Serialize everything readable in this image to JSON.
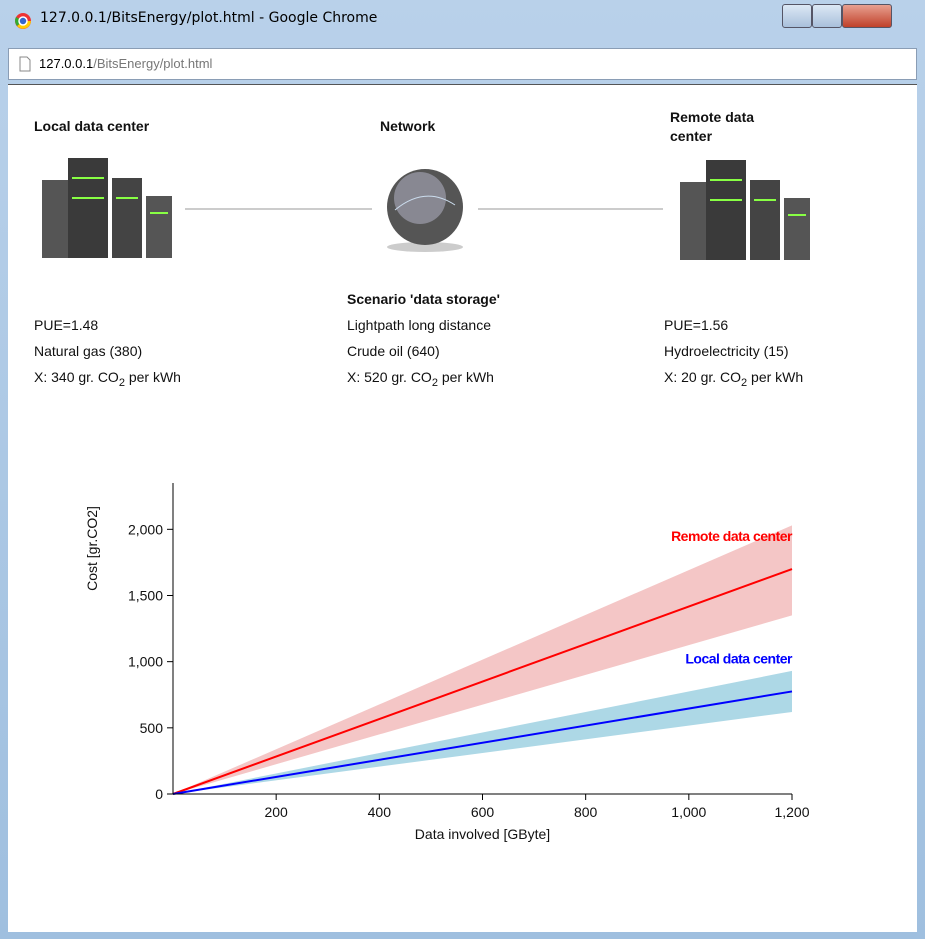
{
  "window": {
    "title": "127.0.0.1/BitsEnergy/plot.html - Google Chrome",
    "address_host": "127.0.0.1",
    "address_path": "/BitsEnergy/plot.html"
  },
  "nodes": [
    {
      "label": "Local data center",
      "lines": [
        "PUE=1.48",
        "Natural gas (380)"
      ],
      "emission": {
        "prefix": "X: 340 gr. CO",
        "sub": "2",
        "suffix": " per kWh"
      }
    },
    {
      "label": "Network",
      "scenario": "Scenario 'data storage'",
      "lines": [
        "Lightpath long distance",
        "Crude oil (640)"
      ],
      "emission": {
        "prefix": "X: 520 gr. CO",
        "sub": "2",
        "suffix": " per kWh"
      }
    },
    {
      "label": "Remote data center",
      "lines": [
        "PUE=1.56",
        "Hydroelectricity (15)"
      ],
      "emission": {
        "prefix": "X: 20 gr. CO",
        "sub": "2",
        "suffix": " per kWh"
      }
    }
  ],
  "chart_data": {
    "type": "line",
    "x_label": "Data involved [GByte]",
    "y_label": "Cost [gr.CO2]",
    "x": [
      0,
      1200
    ],
    "series": [
      {
        "name": "Remote data center",
        "color": "#ff0000",
        "band_color": "#f4c6c6",
        "values": [
          0,
          1700
        ],
        "lower": [
          0,
          1350
        ],
        "upper": [
          0,
          2030
        ]
      },
      {
        "name": "Local data center",
        "color": "#0000ff",
        "band_color": "#add8e6",
        "values": [
          0,
          775
        ],
        "lower": [
          0,
          620
        ],
        "upper": [
          0,
          930
        ]
      }
    ],
    "xlim": [
      0,
      1200
    ],
    "xticks": [
      200,
      400,
      600,
      800,
      {
        "value": 1000,
        "label": "1,000"
      },
      {
        "value": 1200,
        "label": "1,200"
      }
    ],
    "ylim": [
      0,
      2350
    ],
    "yticks": [
      0,
      500,
      {
        "value": 1000,
        "label": "1,000"
      },
      {
        "value": 1500,
        "label": "1,500"
      },
      {
        "value": 2000,
        "label": "2,000"
      }
    ],
    "grid": false
  }
}
